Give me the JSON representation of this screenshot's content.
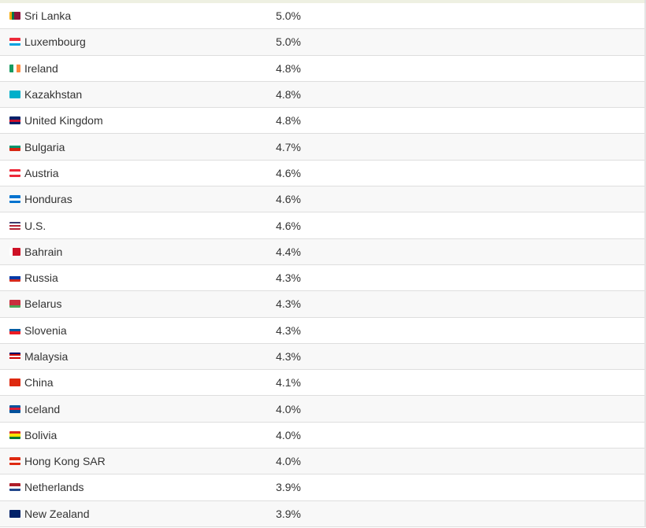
{
  "rows": [
    {
      "country": "Sri Lanka",
      "value": "5.0%",
      "flag": {
        "dir": "v",
        "colors": [
          "#f7a800",
          "#00784a",
          "#8d153a",
          "#8d153a",
          "#8d153a"
        ]
      }
    },
    {
      "country": "Luxembourg",
      "value": "5.0%",
      "flag": {
        "dir": "h",
        "colors": [
          "#ed2939",
          "#ffffff",
          "#00a1de"
        ]
      }
    },
    {
      "country": "Ireland",
      "value": "4.8%",
      "flag": {
        "dir": "v",
        "colors": [
          "#169b62",
          "#ffffff",
          "#ff883e"
        ]
      }
    },
    {
      "country": "Kazakhstan",
      "value": "4.8%",
      "flag": {
        "dir": "h",
        "colors": [
          "#00afca",
          "#00afca",
          "#00afca"
        ]
      }
    },
    {
      "country": "United Kingdom",
      "value": "4.8%",
      "flag": {
        "dir": "h",
        "colors": [
          "#012169",
          "#c8102e",
          "#012169"
        ]
      }
    },
    {
      "country": "Bulgaria",
      "value": "4.7%",
      "flag": {
        "dir": "h",
        "colors": [
          "#ffffff",
          "#00966e",
          "#d62612"
        ]
      }
    },
    {
      "country": "Austria",
      "value": "4.6%",
      "flag": {
        "dir": "h",
        "colors": [
          "#ed2939",
          "#ffffff",
          "#ed2939"
        ]
      }
    },
    {
      "country": "Honduras",
      "value": "4.6%",
      "flag": {
        "dir": "h",
        "colors": [
          "#0073cf",
          "#ffffff",
          "#0073cf"
        ]
      }
    },
    {
      "country": "U.S.",
      "value": "4.6%",
      "flag": {
        "dir": "h",
        "colors": [
          "#3c3b6e",
          "#ffffff",
          "#b22234",
          "#ffffff",
          "#b22234"
        ]
      }
    },
    {
      "country": "Bahrain",
      "value": "4.4%",
      "flag": {
        "dir": "v",
        "colors": [
          "#ffffff",
          "#ce1126",
          "#ce1126",
          "#ce1126"
        ]
      }
    },
    {
      "country": "Russia",
      "value": "4.3%",
      "flag": {
        "dir": "h",
        "colors": [
          "#ffffff",
          "#0039a6",
          "#d52b1e"
        ]
      }
    },
    {
      "country": "Belarus",
      "value": "4.3%",
      "flag": {
        "dir": "h",
        "colors": [
          "#c8313e",
          "#c8313e",
          "#4aa657"
        ]
      }
    },
    {
      "country": "Slovenia",
      "value": "4.3%",
      "flag": {
        "dir": "h",
        "colors": [
          "#ffffff",
          "#005da4",
          "#ed1c24"
        ]
      }
    },
    {
      "country": "Malaysia",
      "value": "4.3%",
      "flag": {
        "dir": "h",
        "colors": [
          "#010066",
          "#cc0001",
          "#ffffff",
          "#cc0001",
          "#ffffff"
        ]
      }
    },
    {
      "country": "China",
      "value": "4.1%",
      "flag": {
        "dir": "h",
        "colors": [
          "#de2910",
          "#de2910",
          "#de2910"
        ]
      }
    },
    {
      "country": "Iceland",
      "value": "4.0%",
      "flag": {
        "dir": "h",
        "colors": [
          "#02529c",
          "#dc1e35",
          "#02529c"
        ]
      }
    },
    {
      "country": "Bolivia",
      "value": "4.0%",
      "flag": {
        "dir": "h",
        "colors": [
          "#d52b1e",
          "#f9e300",
          "#007934"
        ]
      }
    },
    {
      "country": "Hong Kong SAR",
      "value": "4.0%",
      "flag": {
        "dir": "h",
        "colors": [
          "#de2910",
          "#ffffff",
          "#de2910"
        ]
      }
    },
    {
      "country": "Netherlands",
      "value": "3.9%",
      "flag": {
        "dir": "h",
        "colors": [
          "#ae1c28",
          "#ffffff",
          "#21468b"
        ]
      }
    },
    {
      "country": "New Zealand",
      "value": "3.9%",
      "flag": {
        "dir": "h",
        "colors": [
          "#012169",
          "#012169",
          "#012169"
        ]
      }
    }
  ]
}
